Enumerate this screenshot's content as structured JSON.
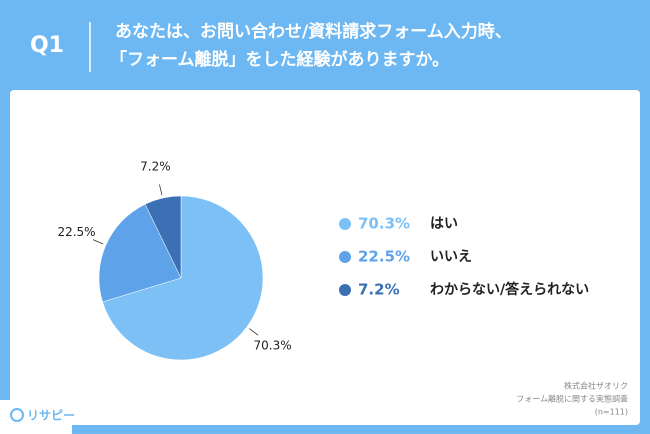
{
  "question": "Q1",
  "chart_data": {
    "type": "pie",
    "title": [
      "あなたは、お問い合わせ/資料請求フォーム入力時、",
      "「フォーム離脱」をした経験がありますか。"
    ],
    "categories": [
      "はい",
      "いいえ",
      "わからない/答えられない"
    ],
    "values": [
      70.3,
      22.5,
      7.2
    ],
    "value_labels": [
      "70.3%",
      "22.5%",
      "7.2%"
    ],
    "colors": [
      "#7cc0f6",
      "#5ea2ea",
      "#3b70b4"
    ]
  },
  "source": [
    "株式会社ザオリク",
    "フォーム離脱に関する実態調査",
    "(n=111)"
  ],
  "brand": "リサピー"
}
